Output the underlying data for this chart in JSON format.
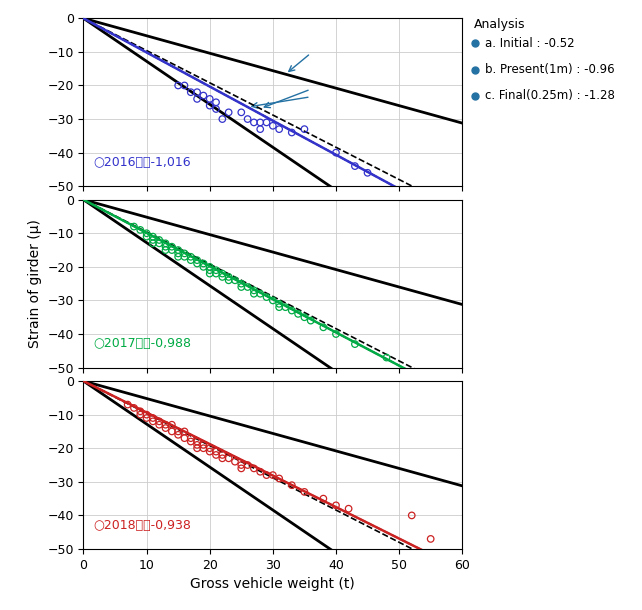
{
  "xlabel": "Gross vehicle weight (t)",
  "ylabel": "Strain of girder (μ)",
  "xlim": [
    0,
    60
  ],
  "ylim": [
    -50,
    0
  ],
  "yticks": [
    0,
    -10,
    -20,
    -30,
    -40,
    -50
  ],
  "xticks": [
    0,
    10,
    20,
    30,
    40,
    50,
    60
  ],
  "char_line_slopes": [
    -0.52,
    -1.28
  ],
  "analysis_color": "#2471a3",
  "legend_title": "Analysis",
  "legend_items": [
    {
      "label": "a. Initial : -0.52",
      "slope": -0.52
    },
    {
      "label": "b. Present(1m) : -0.96",
      "slope": -0.96
    },
    {
      "label": "c. Final(0.25m) : -1.28",
      "slope": -1.28
    }
  ],
  "panels": [
    {
      "year": "2016",
      "label": "○2016年：-1,016",
      "color": "#3333cc",
      "measured_slope": -1.016,
      "dashed_slopes": [
        -0.96,
        -1.016
      ],
      "data_x": [
        15,
        16,
        17,
        18,
        18,
        19,
        20,
        20,
        21,
        21,
        22,
        23,
        25,
        26,
        27,
        28,
        28,
        29,
        30,
        31,
        33,
        35,
        40,
        43,
        45
      ],
      "data_y": [
        -20,
        -20,
        -22,
        -22,
        -24,
        -23,
        -24,
        -26,
        -25,
        -27,
        -30,
        -28,
        -28,
        -30,
        -31,
        -31,
        -33,
        -31,
        -32,
        -33,
        -34,
        -33,
        -40,
        -44,
        -46
      ]
    },
    {
      "year": "2017",
      "label": "○2017年：-0,988",
      "color": "#00aa44",
      "measured_slope": -0.988,
      "dashed_slopes": [
        -0.96,
        -0.988
      ],
      "data_x": [
        8,
        9,
        10,
        10,
        11,
        11,
        11,
        12,
        12,
        13,
        13,
        13,
        14,
        14,
        15,
        15,
        15,
        16,
        16,
        17,
        17,
        18,
        18,
        19,
        19,
        20,
        20,
        20,
        21,
        21,
        22,
        22,
        23,
        23,
        24,
        25,
        25,
        26,
        27,
        27,
        28,
        29,
        30,
        31,
        31,
        32,
        33,
        34,
        35,
        36,
        38,
        40,
        43,
        48
      ],
      "data_y": [
        -8,
        -9,
        -10,
        -11,
        -11,
        -12,
        -13,
        -12,
        -13,
        -13,
        -14,
        -15,
        -14,
        -15,
        -15,
        -16,
        -17,
        -16,
        -17,
        -17,
        -18,
        -18,
        -19,
        -19,
        -20,
        -20,
        -21,
        -22,
        -21,
        -22,
        -22,
        -23,
        -23,
        -24,
        -24,
        -25,
        -26,
        -26,
        -27,
        -28,
        -28,
        -29,
        -30,
        -31,
        -32,
        -32,
        -33,
        -34,
        -35,
        -36,
        -38,
        -40,
        -43,
        -47
      ]
    },
    {
      "year": "2018",
      "label": "○2018年：-0,938",
      "color": "#cc2222",
      "measured_slope": -0.938,
      "dashed_slopes": [
        -0.96,
        -0.938
      ],
      "data_x": [
        7,
        8,
        9,
        9,
        10,
        10,
        11,
        11,
        12,
        12,
        13,
        13,
        14,
        14,
        15,
        15,
        16,
        16,
        17,
        17,
        18,
        18,
        18,
        19,
        19,
        20,
        20,
        21,
        21,
        22,
        22,
        23,
        24,
        25,
        25,
        26,
        27,
        28,
        29,
        30,
        31,
        33,
        35,
        38,
        40,
        42,
        52,
        55
      ],
      "data_y": [
        -7,
        -8,
        -9,
        -10,
        -10,
        -11,
        -11,
        -12,
        -12,
        -13,
        -13,
        -14,
        -13,
        -15,
        -15,
        -16,
        -15,
        -17,
        -17,
        -18,
        -18,
        -19,
        -20,
        -19,
        -20,
        -20,
        -21,
        -21,
        -22,
        -22,
        -23,
        -23,
        -24,
        -25,
        -26,
        -25,
        -26,
        -27,
        -28,
        -28,
        -29,
        -31,
        -33,
        -35,
        -37,
        -38,
        -40,
        -47
      ]
    }
  ]
}
